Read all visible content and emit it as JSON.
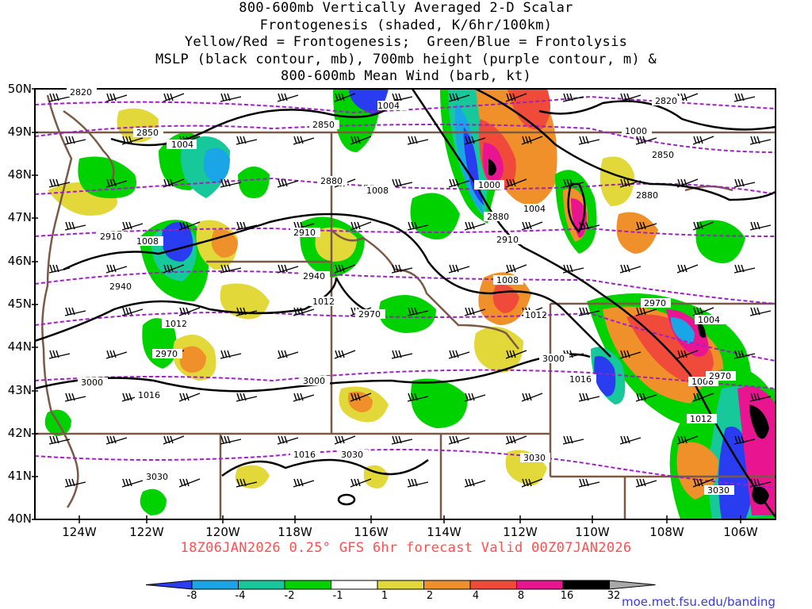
{
  "title_lines": [
    "800-600mb Vertically Averaged 2-D Scalar",
    "Frontogenesis (shaded, K/6hr/100km)",
    "Yellow/Red = Frontogenesis;  Green/Blue = Frontolysis",
    "MSLP (black contour, mb), 700mb height (purple contour, m) &",
    "800-600mb Mean Wind (barb, kt)"
  ],
  "lat_labels": [
    "50N",
    "49N",
    "48N",
    "47N",
    "46N",
    "45N",
    "44N",
    "43N",
    "42N",
    "41N",
    "40N"
  ],
  "lon_labels": [
    "124W",
    "122W",
    "120W",
    "118W",
    "116W",
    "114W",
    "112W",
    "110W",
    "108W",
    "106W"
  ],
  "valid_line": "18Z06JAN2026 0.25° GFS 6hr forecast Valid 00Z07JAN2026",
  "colorbar": {
    "labels": [
      "-8",
      "-4",
      "-2",
      "-1",
      "1",
      "2",
      "4",
      "8",
      "16",
      "32"
    ],
    "colors": [
      "#2a3cf0",
      "#1aa6e6",
      "#16c89a",
      "#00d200",
      "#ffffff",
      "#e2d83a",
      "#f0902a",
      "#f04a3a",
      "#e81490",
      "#000000",
      "#a8a8a8"
    ]
  },
  "contour_colors": {
    "mslp": "#000000",
    "height": "#a020c8",
    "borders": "#7a5a46"
  },
  "mslp_labels": [
    "1004",
    "1008",
    "1012",
    "1016",
    "1000",
    "1004",
    "1008",
    "1012",
    "1016",
    "1000",
    "1004",
    "1008",
    "1004",
    "1012",
    "1016",
    "1008",
    "1012"
  ],
  "height_labels": [
    "2820",
    "2850",
    "2880",
    "2910",
    "2940",
    "2970",
    "3000",
    "3030",
    "2820",
    "2850",
    "2850",
    "2880",
    "2910",
    "2910",
    "2940",
    "2970",
    "2970",
    "3000",
    "3030",
    "3030",
    "2880",
    "2970",
    "3000",
    "3030"
  ],
  "url": "moe.met.fsu.edu/banding"
}
